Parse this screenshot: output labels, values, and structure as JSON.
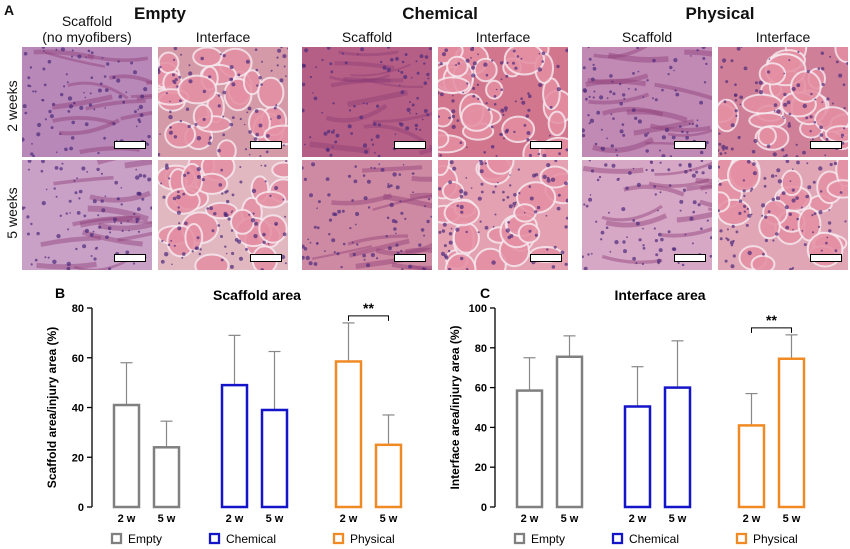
{
  "panel_a": {
    "letter": "A",
    "groups": [
      "Empty",
      "Chemical",
      "Physical"
    ],
    "columns": [
      {
        "label_line1": "Scaffold",
        "label_line2": "(no myofibers)"
      },
      {
        "label_line1": "Interface",
        "label_line2": ""
      },
      {
        "label_line1": "Scaffold",
        "label_line2": ""
      },
      {
        "label_line1": "Interface",
        "label_line2": ""
      },
      {
        "label_line1": "Scaffold",
        "label_line2": ""
      },
      {
        "label_line1": "Interface",
        "label_line2": ""
      }
    ],
    "rows": [
      "2 weeks",
      "5 weeks"
    ]
  },
  "chart_data": [
    {
      "letter": "B",
      "type": "bar",
      "title": "Scaffold area",
      "xlabel": "",
      "ylabel": "Scaffold area/injury area (%)",
      "ylim": [
        0,
        80
      ],
      "yticks": [
        "0",
        "20",
        "40",
        "60",
        "80"
      ],
      "groups": [
        "Empty",
        "Chemical",
        "Physical"
      ],
      "categories": [
        "2 w",
        "5 w"
      ],
      "series": [
        {
          "name": "Empty",
          "color": "#808080",
          "values": [
            41,
            24
          ],
          "errors": [
            17,
            10.5
          ]
        },
        {
          "name": "Chemical",
          "color": "#1414c8",
          "values": [
            49,
            39
          ],
          "errors": [
            20,
            23.5
          ]
        },
        {
          "name": "Physical",
          "color": "#f08a24",
          "values": [
            58.5,
            25
          ],
          "errors": [
            15.5,
            12
          ]
        }
      ],
      "significance": {
        "label": "**",
        "series": "Physical"
      }
    },
    {
      "letter": "C",
      "type": "bar",
      "title": "Interface area",
      "xlabel": "",
      "ylabel": "Interface area/injury area (%)",
      "ylim": [
        0,
        100
      ],
      "yticks": [
        "0",
        "20",
        "40",
        "60",
        "80",
        "100"
      ],
      "groups": [
        "Empty",
        "Chemical",
        "Physical"
      ],
      "categories": [
        "2 w",
        "5 w"
      ],
      "series": [
        {
          "name": "Empty",
          "color": "#808080",
          "values": [
            58.5,
            75.5
          ],
          "errors": [
            16.5,
            10.5
          ]
        },
        {
          "name": "Chemical",
          "color": "#1414c8",
          "values": [
            50.5,
            60
          ],
          "errors": [
            20,
            23.5
          ]
        },
        {
          "name": "Physical",
          "color": "#f08a24",
          "values": [
            41,
            74.5
          ],
          "errors": [
            16,
            12
          ]
        }
      ],
      "significance": {
        "label": "**",
        "series": "Physical"
      }
    }
  ],
  "legend": [
    "Empty",
    "Chemical",
    "Physical"
  ]
}
